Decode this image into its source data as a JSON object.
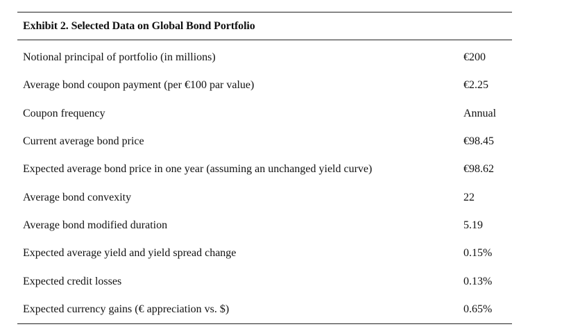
{
  "exhibit": {
    "title": "Exhibit 2. Selected Data on Global Bond Portfolio",
    "rows": [
      {
        "label": "Notional principal of portfolio (in millions)",
        "value": "€200"
      },
      {
        "label": "Average bond coupon payment (per €100 par value)",
        "value": "€2.25"
      },
      {
        "label": "Coupon frequency",
        "value": "Annual"
      },
      {
        "label": "Current average bond price",
        "value": "€98.45"
      },
      {
        "label": "Expected average bond price in one year (assuming an unchanged yield curve)",
        "value": "€98.62"
      },
      {
        "label": "Average bond convexity",
        "value": "22"
      },
      {
        "label": "Average bond modified duration",
        "value": "5.19"
      },
      {
        "label": "Expected average yield and yield spread change",
        "value": "0.15%"
      },
      {
        "label": "Expected credit losses",
        "value": "0.13%"
      },
      {
        "label": "Expected currency gains (€ appreciation vs. $)",
        "value": "0.65%"
      }
    ]
  }
}
